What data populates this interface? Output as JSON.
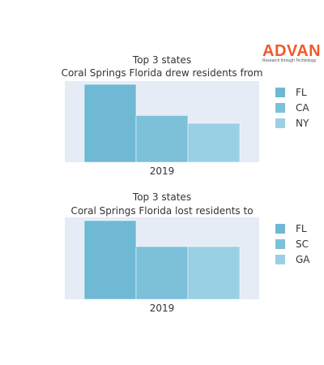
{
  "logo": {
    "brand": "ADVAN",
    "tagline": "Research through Technology",
    "color": "#f05a28"
  },
  "colors": {
    "plot_bg": "#e5ecf6",
    "series": [
      "#6fb9d4",
      "#7cc0da",
      "#9ad0e4"
    ]
  },
  "chart_data": [
    {
      "type": "bar",
      "title": "Top 3 states",
      "subtitle": "Coral Springs Florida drew residents from",
      "categories": [
        "2019"
      ],
      "series": [
        {
          "name": "FL",
          "values": [
            100
          ]
        },
        {
          "name": "CA",
          "values": [
            60
          ]
        },
        {
          "name": "NY",
          "values": [
            50
          ]
        }
      ],
      "ylim": [
        0,
        100
      ],
      "grid": true,
      "legend_position": "right"
    },
    {
      "type": "bar",
      "title": "Top 3 states",
      "subtitle": "Coral Springs Florida lost residents to",
      "categories": [
        "2019"
      ],
      "series": [
        {
          "name": "FL",
          "values": [
            100
          ]
        },
        {
          "name": "SC",
          "values": [
            67
          ]
        },
        {
          "name": "GA",
          "values": [
            67
          ]
        }
      ],
      "ylim": [
        0,
        100
      ],
      "grid": true,
      "legend_position": "right"
    }
  ]
}
